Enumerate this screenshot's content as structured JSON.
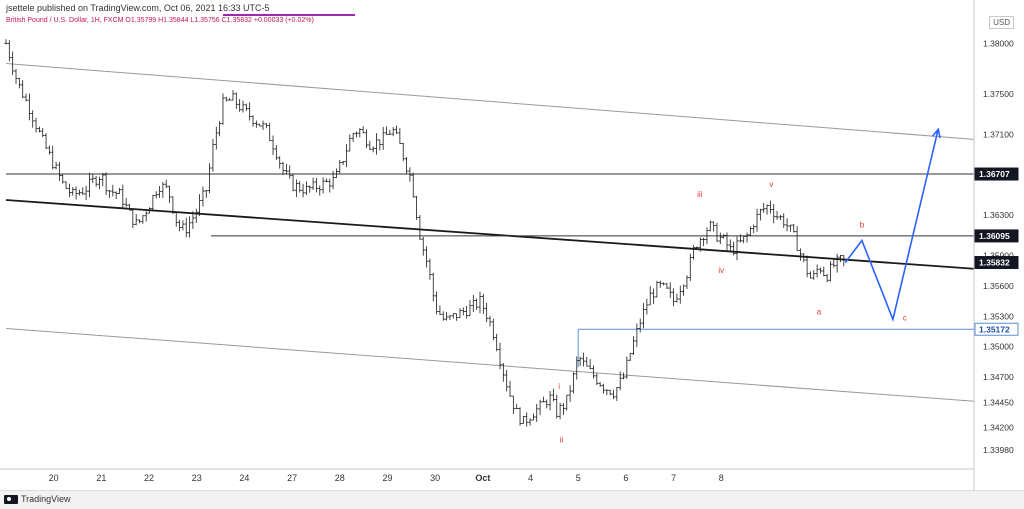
{
  "header": {
    "published": "jsettele published on TradingView.com, Oct 06, 2021 16:33 UTC-5",
    "symbol_line": "British Pound / U.S. Dollar, 1H, FXCM  O1.35799  H1.35844  L1.35756  C1.35832  +0.00033 (+0.02%)",
    "currency": "USD"
  },
  "footer": {
    "logo_text": "TradingView"
  },
  "colors": {
    "candle": "#1a1a1a",
    "channel": "#9a9a9a",
    "trend": "#1a1a1a",
    "projection": "#2962ff",
    "wave_label": "#e53935",
    "level_blue": "#5b8fd6"
  },
  "chart_data": {
    "type": "candlestick",
    "title": "British Pound / U.S. Dollar, 1H, FXCM",
    "ylabel": "USD",
    "ylim": [
      1.338,
      1.3825
    ],
    "x_ticks": [
      "20",
      "21",
      "22",
      "23",
      "24",
      "27",
      "28",
      "29",
      "30",
      "Oct",
      "4",
      "5",
      "6",
      "7",
      "8"
    ],
    "y_ticks": [
      1.38,
      1.375,
      1.371,
      1.363,
      1.359,
      1.356,
      1.353,
      1.35,
      1.347,
      1.3445,
      1.342,
      1.3398
    ],
    "y_tick_labels": [
      "1.38000",
      "1.37500",
      "1.37100",
      "1.36300",
      "1.35900",
      "1.35600",
      "1.35300",
      "1.35000",
      "1.34700",
      "1.34450",
      "1.34200",
      "1.33980"
    ],
    "price_tags": [
      {
        "label": "1.36707",
        "value": 1.36707,
        "style": "dark"
      },
      {
        "label": "1.36095",
        "value": 1.36095,
        "style": "dark"
      },
      {
        "label": "1.35832",
        "value": 1.35832,
        "style": "dark"
      },
      {
        "label": "1.35172",
        "value": 1.35172,
        "style": "blue"
      }
    ],
    "closes": [
      [
        0.0,
        1.38
      ],
      [
        0.25,
        1.376
      ],
      [
        0.5,
        1.3735
      ],
      [
        0.75,
        1.3705
      ],
      [
        1.0,
        1.368
      ],
      [
        1.2,
        1.366
      ],
      [
        1.4,
        1.365
      ],
      [
        1.65,
        1.3655
      ],
      [
        1.85,
        1.3665
      ],
      [
        2.0,
        1.367
      ],
      [
        2.15,
        1.3655
      ],
      [
        2.4,
        1.365
      ],
      [
        2.6,
        1.363
      ],
      [
        2.75,
        1.362
      ],
      [
        3.0,
        1.364
      ],
      [
        3.2,
        1.366
      ],
      [
        3.4,
        1.3655
      ],
      [
        3.6,
        1.362
      ],
      [
        3.75,
        1.3615
      ],
      [
        3.95,
        1.363
      ],
      [
        4.2,
        1.3655
      ],
      [
        4.35,
        1.37
      ],
      [
        4.55,
        1.374
      ],
      [
        4.75,
        1.3745
      ],
      [
        4.95,
        1.3735
      ],
      [
        5.2,
        1.3725
      ],
      [
        5.45,
        1.3715
      ],
      [
        5.65,
        1.3695
      ],
      [
        5.8,
        1.3675
      ],
      [
        6.0,
        1.366
      ],
      [
        6.3,
        1.3655
      ],
      [
        6.6,
        1.366
      ],
      [
        6.9,
        1.3665
      ],
      [
        7.1,
        1.369
      ],
      [
        7.25,
        1.371
      ],
      [
        7.4,
        1.3715
      ],
      [
        7.65,
        1.37
      ],
      [
        7.9,
        1.3705
      ],
      [
        8.1,
        1.3715
      ],
      [
        8.25,
        1.37
      ],
      [
        8.5,
        1.3665
      ],
      [
        8.7,
        1.3605
      ],
      [
        8.85,
        1.358
      ],
      [
        9.0,
        1.354
      ],
      [
        9.2,
        1.3525
      ],
      [
        9.4,
        1.353
      ],
      [
        9.6,
        1.3535
      ],
      [
        9.8,
        1.354
      ],
      [
        9.95,
        1.3545
      ],
      [
        10.1,
        1.353
      ],
      [
        10.25,
        1.351
      ],
      [
        10.4,
        1.348
      ],
      [
        10.55,
        1.3455
      ],
      [
        10.7,
        1.3435
      ],
      [
        10.85,
        1.3425
      ],
      [
        11.05,
        1.3435
      ],
      [
        11.2,
        1.344
      ],
      [
        11.4,
        1.345
      ],
      [
        11.55,
        1.3435
      ],
      [
        11.75,
        1.3445
      ],
      [
        11.9,
        1.347
      ],
      [
        12.0,
        1.349
      ],
      [
        12.15,
        1.348
      ],
      [
        12.35,
        1.347
      ],
      [
        12.55,
        1.346
      ],
      [
        12.75,
        1.3455
      ],
      [
        12.95,
        1.347
      ],
      [
        13.1,
        1.3495
      ],
      [
        13.3,
        1.3525
      ],
      [
        13.5,
        1.355
      ],
      [
        13.7,
        1.356
      ],
      [
        13.85,
        1.3555
      ],
      [
        14.0,
        1.3545
      ],
      [
        14.15,
        1.356
      ],
      [
        14.3,
        1.3575
      ],
      [
        14.45,
        1.36
      ],
      [
        14.6,
        1.361
      ],
      [
        14.75,
        1.362
      ],
      [
        14.9,
        1.361
      ],
      [
        15.05,
        1.3605
      ],
      [
        15.2,
        1.3595
      ],
      [
        15.35,
        1.36
      ],
      [
        15.55,
        1.361
      ],
      [
        15.7,
        1.3625
      ],
      [
        15.85,
        1.3635
      ],
      [
        16.0,
        1.364
      ],
      [
        16.15,
        1.363
      ],
      [
        16.3,
        1.3625
      ],
      [
        16.45,
        1.3615
      ],
      [
        16.6,
        1.36
      ],
      [
        16.75,
        1.358
      ],
      [
        16.9,
        1.3565
      ],
      [
        17.05,
        1.358
      ],
      [
        17.2,
        1.357
      ],
      [
        17.35,
        1.358
      ],
      [
        17.5,
        1.3585
      ],
      [
        17.6,
        1.35832
      ]
    ],
    "annotations": [
      {
        "label": "i",
        "x": 11.6,
        "y": 1.3458
      },
      {
        "label": "ii",
        "x": 11.65,
        "y": 1.3405
      },
      {
        "label": "iii",
        "x": 14.55,
        "y": 1.3648
      },
      {
        "label": "iv",
        "x": 15.0,
        "y": 1.3573
      },
      {
        "label": "v",
        "x": 16.05,
        "y": 1.3658
      },
      {
        "label": "a",
        "x": 17.05,
        "y": 1.3532
      },
      {
        "label": "b",
        "x": 17.95,
        "y": 1.3618
      },
      {
        "label": "c",
        "x": 18.85,
        "y": 1.3526
      }
    ],
    "projection": [
      [
        17.6,
        1.35832
      ],
      [
        17.95,
        1.3605
      ],
      [
        18.6,
        1.3527
      ],
      [
        19.55,
        1.3715
      ]
    ],
    "lines": [
      {
        "name": "channel-top",
        "from": [
          0.0,
          1.378
        ],
        "to": [
          20.3,
          1.3705
        ]
      },
      {
        "name": "channel-bottom",
        "from": [
          0.0,
          1.3518
        ],
        "to": [
          20.3,
          1.3446
        ]
      },
      {
        "name": "trend",
        "from": [
          0.0,
          1.3645
        ],
        "to": [
          20.3,
          1.3577
        ]
      }
    ],
    "levels": [
      {
        "name": "level-1.36707",
        "y": 1.36707,
        "from_x": 0.0
      },
      {
        "name": "level-1.36095",
        "y": 1.36095,
        "from_x": 4.3
      },
      {
        "name": "level-1.35172",
        "y": 1.35172,
        "from_x": 12.0
      }
    ],
    "grid": false,
    "legend": "none"
  }
}
